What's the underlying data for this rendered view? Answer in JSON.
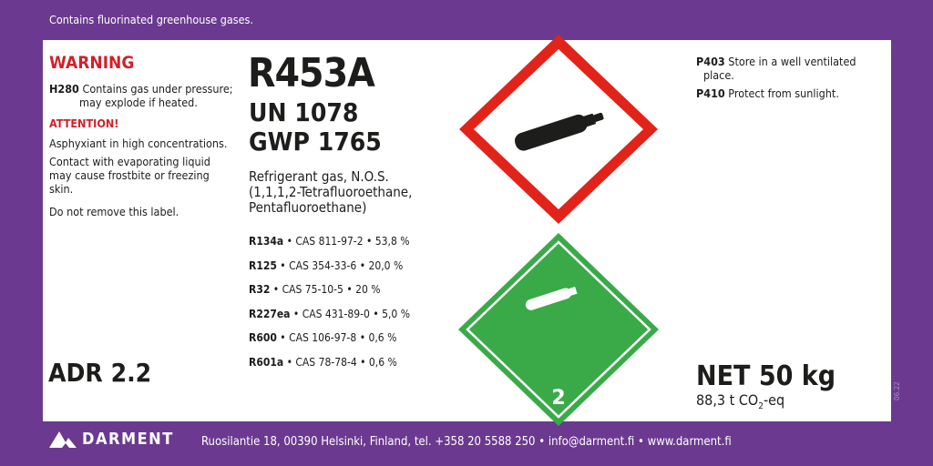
{
  "header_text": "Contains fluorinated greenhouse gases.",
  "left": {
    "warning": "WARNING",
    "h280_code": "H280",
    "h280_text": "Contains gas under pressure;",
    "h280_text2": "may explode if heated.",
    "attention": "ATTENTION!",
    "asphyxiant": "Asphyxiant in high concentrations.",
    "contact1": "Contact with evaporating liquid",
    "contact2": "may cause frostbite or freezing",
    "contact3": "skin.",
    "label_note": "Do not remove this label.",
    "adr": "ADR 2.2"
  },
  "center": {
    "product": "R453A",
    "un": "UN 1078",
    "gwp": "GWP 1765",
    "desc1": "Refrigerant gas, N.O.S.",
    "desc2": "(1,1,1,2-Tetrafluoroethane,",
    "desc3": "Pentafluoroethane)",
    "components": [
      {
        "name": "R134a",
        "detail": " • CAS 811-97-2 • 53,8 %"
      },
      {
        "name": "R125",
        "detail": " • CAS 354-33-6 • 20,0 %"
      },
      {
        "name": "R32",
        "detail": " • CAS 75-10-5 • 20 %"
      },
      {
        "name": "R227ea",
        "detail": " • CAS 431-89-0 • 5,0 %"
      },
      {
        "name": "R600",
        "detail": " • CAS 106-97-8 • 0,6 %"
      },
      {
        "name": "R601a",
        "detail": " • CAS 78-78-4 • 0,6 %"
      }
    ]
  },
  "pictograms": {
    "ghs_icon": "gas-cylinder-icon",
    "ghs_color": "#e2231a",
    "adr_icon": "gas-cylinder-icon",
    "adr_color": "#3aaa49",
    "adr_class": "2"
  },
  "right": {
    "p403_code": "P403",
    "p403_text": "Store in a well ventilated",
    "p403_text2": "place.",
    "p410_code": "P410",
    "p410_text": "Protect from sunlight.",
    "net": "NET 50 kg",
    "co2_value": "88,3 t CO",
    "co2_sub": "2",
    "co2_suffix": "-eq",
    "version": "06.22"
  },
  "footer": {
    "brand": "DARMENT",
    "address": "Ruosilantie 18, 00390 Helsinki, Finland, tel. +358 20 5588 250 • info@darment.fi • www.darment.fi"
  },
  "colors": {
    "background": "#6b398f",
    "warning": "#d2202a"
  }
}
